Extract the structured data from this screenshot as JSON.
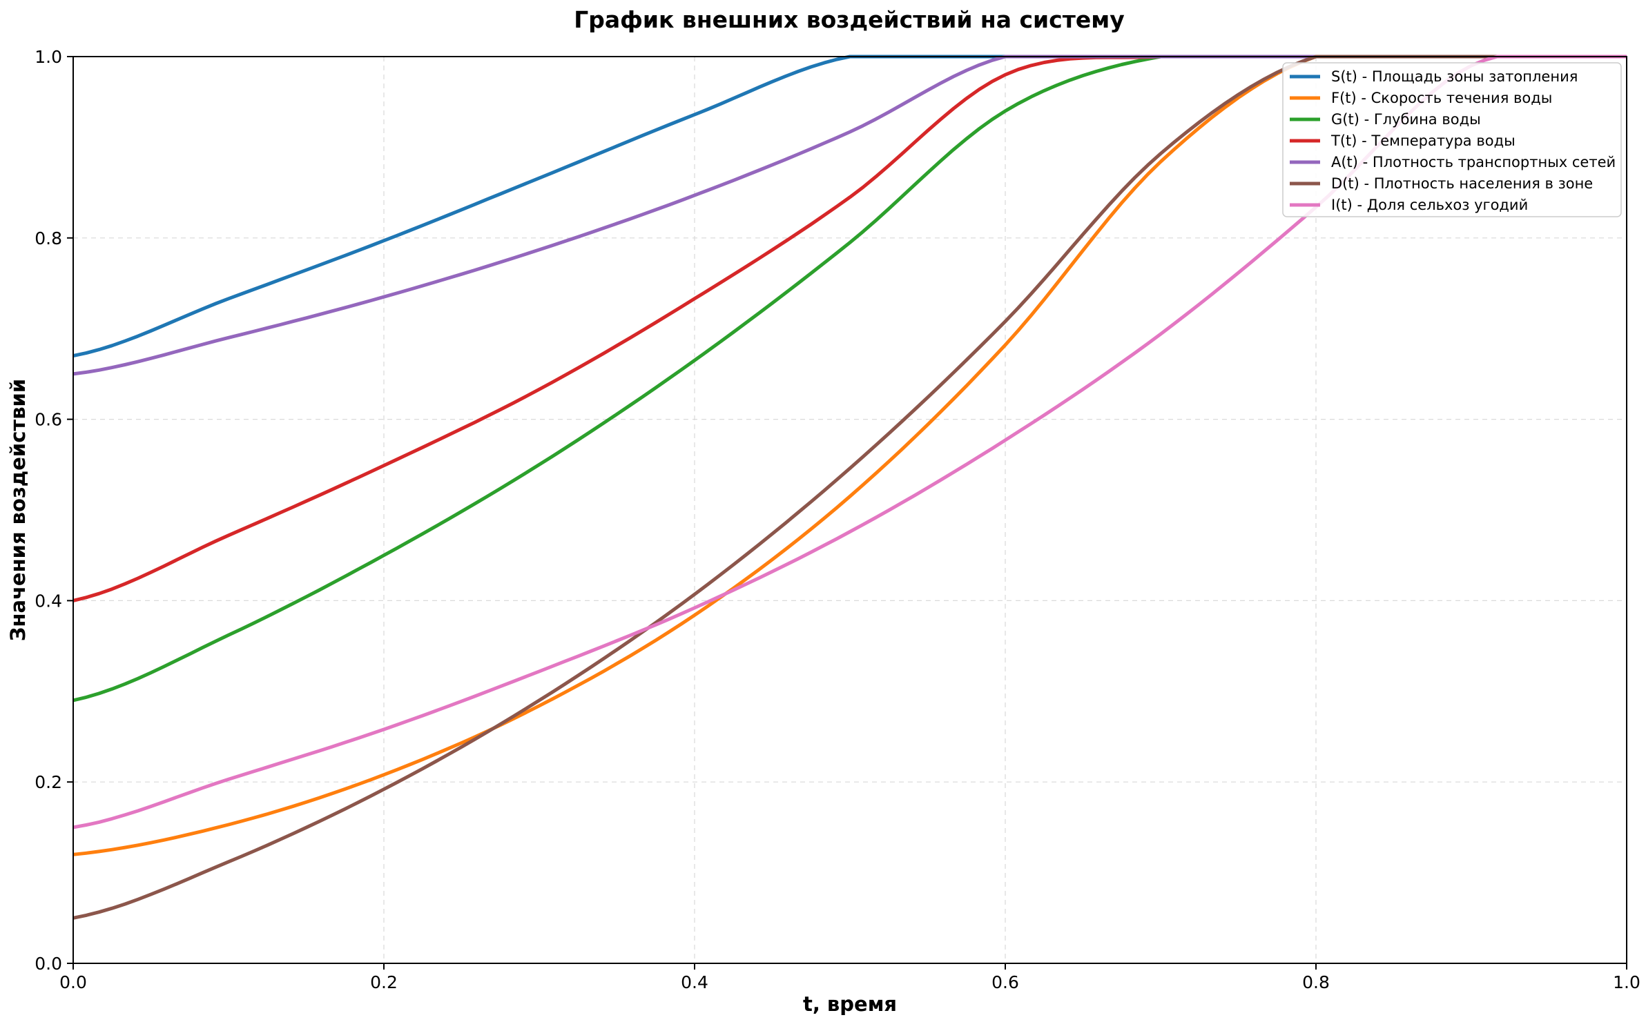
{
  "chart_data": {
    "type": "line",
    "title": "График внешних воздействий на систему",
    "xlabel": "t, время",
    "ylabel": "Значения воздействий",
    "xlim": [
      0,
      1
    ],
    "ylim": [
      0,
      1
    ],
    "xticks": [
      "0.0",
      "0.2",
      "0.4",
      "0.6",
      "0.8",
      "1.0"
    ],
    "yticks": [
      "0.0",
      "0.2",
      "0.4",
      "0.6",
      "0.8",
      "1.0"
    ],
    "grid": true,
    "legend_position": "top-right",
    "x": [
      0,
      0.1,
      0.2,
      0.3,
      0.4,
      0.5,
      0.6,
      0.7,
      0.8,
      0.9,
      1.0
    ],
    "series": [
      {
        "name": "S(t) - Площадь зоны затопления",
        "color": "#1f77b4",
        "values": [
          0.67,
          0.733,
          0.797,
          0.866,
          0.936,
          1.0,
          1.0,
          1.0,
          1.0,
          1.0,
          1.0
        ]
      },
      {
        "name": "F(t) - Скорость течения воды",
        "color": "#ff7f0e",
        "values": [
          0.12,
          0.153,
          0.208,
          0.284,
          0.384,
          0.515,
          0.682,
          0.884,
          1.0,
          1.0,
          1.0
        ]
      },
      {
        "name": "G(t) - Глубина воды",
        "color": "#2ca02c",
        "values": [
          0.29,
          0.362,
          0.45,
          0.55,
          0.665,
          0.795,
          0.94,
          1.0,
          1.0,
          1.0,
          1.0
        ]
      },
      {
        "name": "T(t) - Температура воды",
        "color": "#d62728",
        "values": [
          0.4,
          0.472,
          0.549,
          0.633,
          0.733,
          0.845,
          0.98,
          1.0,
          1.0,
          1.0,
          1.0
        ]
      },
      {
        "name": "A(t) - Плотность транспортных сетей",
        "color": "#9467bd",
        "values": [
          0.65,
          0.69,
          0.735,
          0.787,
          0.847,
          0.917,
          1.0,
          1.0,
          1.0,
          1.0,
          1.0
        ]
      },
      {
        "name": "D(t) - Плотность населения в зоне",
        "color": "#8c564b",
        "values": [
          0.05,
          0.112,
          0.192,
          0.29,
          0.407,
          0.546,
          0.708,
          0.893,
          1.0,
          1.0,
          1.0
        ]
      },
      {
        "name": "I(t) - Доля сельхоз угодий",
        "color": "#e377c2",
        "values": [
          0.15,
          0.203,
          0.258,
          0.322,
          0.392,
          0.476,
          0.577,
          0.694,
          0.834,
          0.99,
          1.0
        ]
      }
    ]
  }
}
